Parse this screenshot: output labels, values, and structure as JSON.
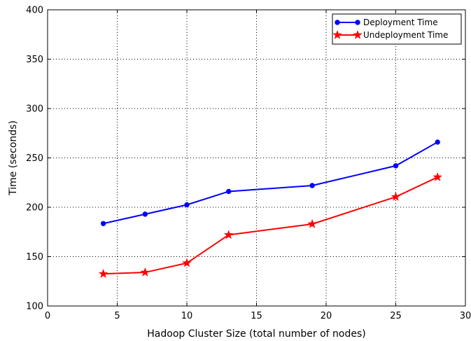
{
  "chart_data": {
    "type": "line",
    "title": "",
    "xlabel": "Hadoop Cluster Size (total number of nodes)",
    "ylabel": "Time (seconds)",
    "xlim": [
      0,
      30
    ],
    "ylim": [
      100,
      400
    ],
    "xticks": [
      0,
      5,
      10,
      15,
      20,
      25,
      30
    ],
    "yticks": [
      100,
      150,
      200,
      250,
      300,
      350,
      400
    ],
    "grid": true,
    "legend_position": "top-right",
    "x": [
      4,
      7,
      10,
      13,
      19,
      25,
      28
    ],
    "series": [
      {
        "name": "Deployment Time",
        "color": "#0000ff",
        "marker": "circle",
        "values": [
          183.5,
          193,
          202.5,
          216,
          222,
          242,
          266
        ]
      },
      {
        "name": "Undeployment Time",
        "color": "#ff0000",
        "marker": "star",
        "values": [
          132.5,
          134,
          143.5,
          172,
          183,
          210.5,
          230.5
        ]
      }
    ]
  }
}
